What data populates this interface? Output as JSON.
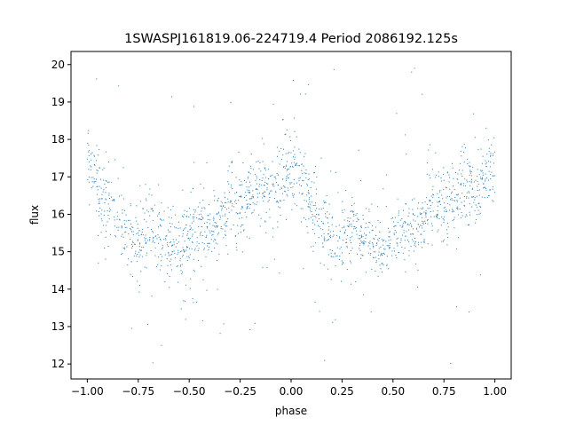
{
  "chart_data": {
    "type": "scatter",
    "title": "1SWASPJ161819.06-224719.4 Period 2086192.125s",
    "xlabel": "phase",
    "ylabel": "flux",
    "xlim": [
      -1.08,
      1.08
    ],
    "ylim": [
      11.6,
      20.35
    ],
    "x_ticks": [
      -1.0,
      -0.75,
      -0.5,
      -0.25,
      0.0,
      0.25,
      0.5,
      0.75,
      1.0
    ],
    "x_tick_labels": [
      "−1.00",
      "−0.75",
      "−0.50",
      "−0.25",
      "0.00",
      "0.25",
      "0.50",
      "0.75",
      "1.00"
    ],
    "y_ticks": [
      12,
      13,
      14,
      15,
      16,
      17,
      18,
      19,
      20
    ],
    "y_tick_labels": [
      "12",
      "13",
      "14",
      "15",
      "16",
      "17",
      "18",
      "19",
      "20"
    ],
    "point_color": "#1f77b4",
    "grid": false,
    "legend": "none",
    "series": [
      {
        "name": "",
        "description": "phase-folded light curve, pattern repeats with period 1 in phase",
        "profile_phase": [
          0.0,
          0.02,
          0.05,
          0.08,
          0.12,
          0.16,
          0.2,
          0.25,
          0.3,
          0.35,
          0.4,
          0.45,
          0.5,
          0.55,
          0.6,
          0.65,
          0.7,
          0.75,
          0.8,
          0.85,
          0.9,
          0.95,
          1.0
        ],
        "profile_flux": [
          17.2,
          17.3,
          16.7,
          16.4,
          16.1,
          15.8,
          15.4,
          15.3,
          15.8,
          15.5,
          15.1,
          15.0,
          15.3,
          15.6,
          15.5,
          15.9,
          16.3,
          16.2,
          16.5,
          16.8,
          16.6,
          16.9,
          17.2
        ],
        "typical_scatter": 0.55,
        "outlier_range": [
          12.0,
          20.0
        ]
      }
    ]
  }
}
